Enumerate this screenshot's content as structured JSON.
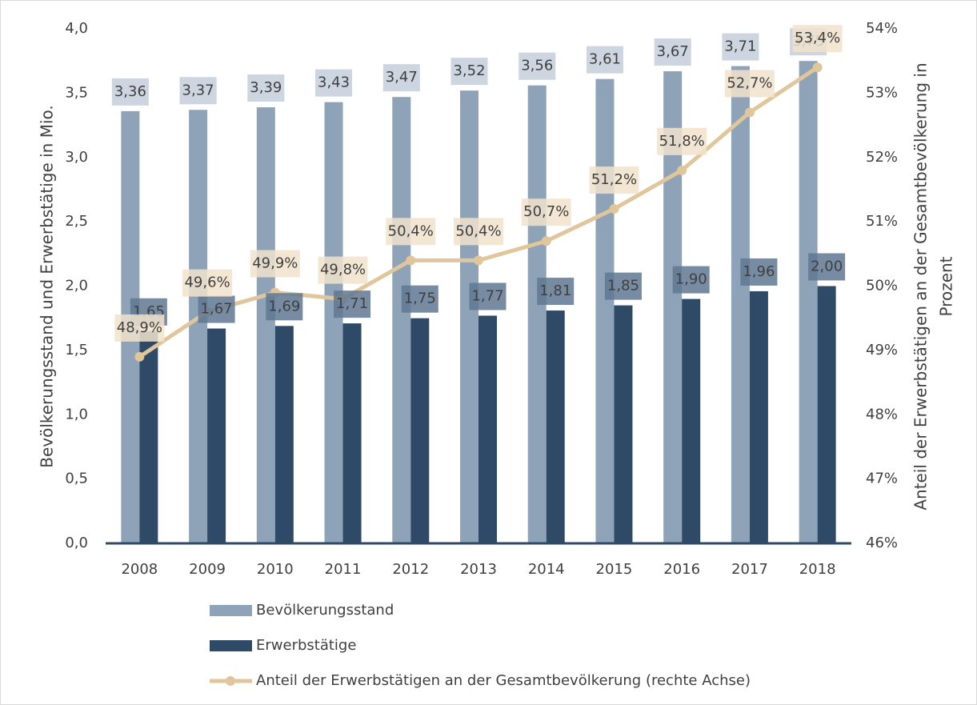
{
  "chart_data": {
    "type": "bar",
    "categories": [
      "2008",
      "2009",
      "2010",
      "2011",
      "2012",
      "2013",
      "2014",
      "2015",
      "2016",
      "2017",
      "2018"
    ],
    "series": [
      {
        "name": "Bevölkerungsstand",
        "type": "bar",
        "color": "#8fa3b8",
        "label_color": "#c3cedb",
        "values": [
          3.36,
          3.37,
          3.39,
          3.43,
          3.47,
          3.52,
          3.56,
          3.61,
          3.67,
          3.71,
          3.75
        ],
        "value_labels": [
          "3,36",
          "3,37",
          "3,39",
          "3,43",
          "3,47",
          "3,52",
          "3,56",
          "3,61",
          "3,67",
          "3,71",
          "3,75"
        ]
      },
      {
        "name": "Erwerbstätige",
        "type": "bar",
        "color": "#2e4a66",
        "label_color": "#5f7892",
        "values": [
          1.65,
          1.67,
          1.69,
          1.71,
          1.75,
          1.77,
          1.81,
          1.85,
          1.9,
          1.96,
          2.0
        ],
        "value_labels": [
          "1,65",
          "1,67",
          "1,69",
          "1,71",
          "1,75",
          "1,77",
          "1,81",
          "1,85",
          "1,90",
          "1,96",
          "2,00"
        ]
      },
      {
        "name": "Anteil der Erwerbstätigen an der Gesamtbevölkerung (rechte Achse)",
        "type": "line",
        "axis": "y2",
        "color": "#dfc69b",
        "label_color": "#f1e3cd",
        "values": [
          48.9,
          49.6,
          49.9,
          49.8,
          50.4,
          50.4,
          50.7,
          51.2,
          51.8,
          52.7,
          53.4
        ],
        "value_labels": [
          "48,9%",
          "49,6%",
          "49,9%",
          "49,8%",
          "50,4%",
          "50,4%",
          "50,7%",
          "51,2%",
          "51,8%",
          "52,7%",
          "53,4%"
        ]
      }
    ],
    "ylabel": "Bevölkerungsstand und Erwerbstätige in Mio.",
    "y2label": [
      "Anteil der Erwerbstätigen an der Gesamtbevölkerung in",
      "Prozent"
    ],
    "ylim": [
      0,
      4
    ],
    "yticks": [
      {
        "value": 0,
        "label": "0,0"
      },
      {
        "value": 0.5,
        "label": "0,5"
      },
      {
        "value": 1,
        "label": "1,0"
      },
      {
        "value": 1.5,
        "label": "1,5"
      },
      {
        "value": 2,
        "label": "2,0"
      },
      {
        "value": 2.5,
        "label": "2,5"
      },
      {
        "value": 3,
        "label": "3,0"
      },
      {
        "value": 3.5,
        "label": "3,5"
      },
      {
        "value": 4,
        "label": "4,0"
      }
    ],
    "y2lim": [
      46,
      54
    ],
    "y2ticks": [
      {
        "value": 46,
        "label": "46%"
      },
      {
        "value": 47,
        "label": "47%"
      },
      {
        "value": 48,
        "label": "48%"
      },
      {
        "value": 49,
        "label": "49%"
      },
      {
        "value": 50,
        "label": "50%"
      },
      {
        "value": 51,
        "label": "51%"
      },
      {
        "value": 52,
        "label": "52%"
      },
      {
        "value": 53,
        "label": "53%"
      },
      {
        "value": 54,
        "label": "54%"
      }
    ],
    "grid": false
  }
}
